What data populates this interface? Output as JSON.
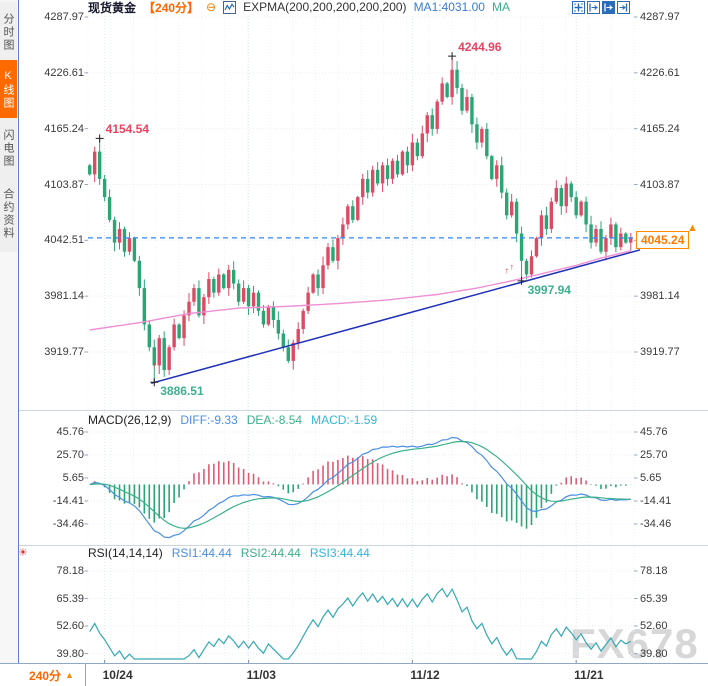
{
  "window_title": "现货黄金 240分 K线图",
  "sidebar": {
    "tabs": [
      {
        "label": "分时图",
        "active": false
      },
      {
        "label": "K线图",
        "active": true
      },
      {
        "label": "闪电图",
        "active": false
      },
      {
        "label": "合约资料",
        "active": false
      }
    ]
  },
  "header": {
    "symbol": "现货黄金",
    "period": "【240分】",
    "collapse_icon": "⊖",
    "indicator": "EXPMA(200,200,200,200,200)",
    "ma1_label": "MA1:4031.00",
    "ma_label": "MA"
  },
  "toolbar": {
    "icons": [
      "crosshair",
      "zoom-range-left",
      "zoom-range-right-active",
      "pane-shift"
    ]
  },
  "colors": {
    "up_candle": "#dc4a63",
    "down_candle": "#2aa574",
    "expma_line": "#ef8fd4",
    "trend_line": "#2031b8",
    "price_dash_line": "#2e86ff",
    "diff_line": "#4a8fe2",
    "dea_line": "#3cb08a",
    "rsi_line": "#33a9b5",
    "accent_orange": "#ff6600"
  },
  "main_chart": {
    "axis": [
      "4287.97",
      "4226.61",
      "4165.24",
      "4103.87",
      "4042.51",
      "3981.14",
      "3919.77"
    ],
    "price_tag": "4045.24",
    "price_tag_arrow": "▲"
  },
  "macd": {
    "title": "MACD(26,12,9)",
    "diff_label": "DIFF:-9.33",
    "dea_label": "DEA:-8.54",
    "macd_label": "MACD:-1.59",
    "axis": [
      "45.76",
      "25.70",
      "5.65",
      "-14.41",
      "-34.46"
    ]
  },
  "rsi": {
    "title": "RSI(14,14,14)",
    "rsi1_label": "RSI1:44.44",
    "rsi2_label": "RSI2:44.44",
    "rsi3_label": "RSI3:44.44",
    "axis": [
      "78.18",
      "65.39",
      "52.60",
      "39.80"
    ],
    "sun_icon": "☀"
  },
  "bottom": {
    "period_label": "240分",
    "period_arrow": "▲",
    "dates": [
      {
        "label": "10/24",
        "idx": 3
      },
      {
        "label": "11/03",
        "idx": 32
      },
      {
        "label": "11/12",
        "idx": 65
      },
      {
        "label": "11/21",
        "idx": 98
      }
    ]
  },
  "watermark": "FX678",
  "chart_data": {
    "type": "candlestick-with-indicators",
    "symbol": "现货黄金",
    "interval": "240min",
    "main_axis_values": [
      4287.97,
      4226.61,
      4165.24,
      4103.87,
      4042.51,
      3981.14,
      3919.77
    ],
    "open0": 4125,
    "closes": [
      4115,
      4140,
      4110,
      4090,
      4065,
      4040,
      4055,
      4030,
      4045,
      4020,
      3990,
      3950,
      3925,
      3905,
      3935,
      3900,
      3925,
      3950,
      3935,
      3960,
      3975,
      3990,
      3960,
      3980,
      4000,
      3985,
      4005,
      3990,
      4010,
      3995,
      3975,
      3990,
      3970,
      3985,
      3965,
      3950,
      3970,
      3955,
      3940,
      3925,
      3910,
      3930,
      3945,
      3965,
      3985,
      4005,
      3990,
      4015,
      4035,
      4020,
      4045,
      4060,
      4080,
      4065,
      4090,
      4110,
      4095,
      4120,
      4105,
      4125,
      4110,
      4130,
      4115,
      4140,
      4125,
      4150,
      4135,
      4160,
      4180,
      4165,
      4195,
      4215,
      4200,
      4230,
      4210,
      4185,
      4200,
      4170,
      4150,
      4165,
      4135,
      4110,
      4125,
      4095,
      4070,
      4085,
      4050,
      4020,
      4005,
      4025,
      4045,
      4070,
      4055,
      4085,
      4100,
      4080,
      4105,
      4090,
      4070,
      4085,
      4060,
      4040,
      4055,
      4030,
      4045,
      4060,
      4035,
      4050,
      4040,
      4045.24
    ],
    "wick_overrides": {
      "2": {
        "high": 4154.54
      },
      "13": {
        "low": 3886.51
      },
      "73": {
        "high": 4244.96
      },
      "87": {
        "low": 3997.94
      }
    },
    "current_price": 4045.24,
    "expma_points": [
      [
        0,
        3944
      ],
      [
        10,
        3952
      ],
      [
        20,
        3962
      ],
      [
        30,
        3968
      ],
      [
        40,
        3970
      ],
      [
        50,
        3973
      ],
      [
        60,
        3977
      ],
      [
        70,
        3983
      ],
      [
        78,
        3990
      ],
      [
        85,
        3998
      ],
      [
        92,
        4007
      ],
      [
        98,
        4015
      ],
      [
        103,
        4023
      ],
      [
        109,
        4031
      ]
    ],
    "expma_last_value": 4031.0,
    "trendline": {
      "from_idx": 13,
      "from_price": 3886.51,
      "to_price": 4032
    },
    "annotations": [
      {
        "text": "4154.54",
        "idx": 2,
        "price": 4154.54,
        "color": "red",
        "pos": "above"
      },
      {
        "text": "4244.96",
        "idx": 73,
        "price": 4244.96,
        "color": "red",
        "pos": "above"
      },
      {
        "text": "3886.51",
        "idx": 13,
        "price": 3886.51,
        "color": "green",
        "pos": "below"
      },
      {
        "text": "3997.94",
        "idx": 87,
        "price": 3997.94,
        "color": "green",
        "pos": "below"
      }
    ],
    "signal_arrows": [
      {
        "idx": 13,
        "price": 3902
      },
      {
        "idx": 84,
        "price": 4006
      },
      {
        "idx": 85,
        "price": 4010
      }
    ],
    "macd_axis_values": [
      45.76,
      25.7,
      5.65,
      -14.41,
      -34.46
    ],
    "macd_params": [
      26,
      12,
      9
    ],
    "macd_current": {
      "diff": -9.33,
      "dea": -8.54,
      "macd": -1.59
    },
    "rsi_axis_values": [
      78.18,
      65.39,
      52.6,
      39.8
    ],
    "rsi_params": [
      14,
      14,
      14
    ],
    "rsi_current": {
      "rsi1": 44.44,
      "rsi2": 44.44,
      "rsi3": 44.44
    }
  }
}
